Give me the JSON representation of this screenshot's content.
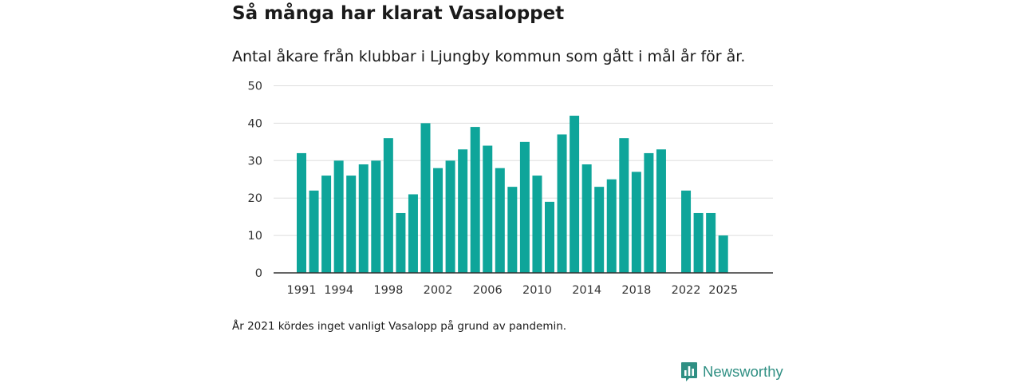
{
  "header": {
    "title": "Så många har klarat Vasaloppet",
    "subtitle": "Antal åkare från klubbar i Ljungby kommun som gått i mål år för år."
  },
  "note": "År 2021 kördes inget vanligt Vasalopp på grund av pandemin.",
  "brand": {
    "name": "Newsworthy",
    "color": "#2f8f83"
  },
  "colors": {
    "bar": "#0ea59a",
    "grid": "#dddddd",
    "axis": "#333333"
  },
  "chart_data": {
    "type": "bar",
    "title": "Så många har klarat Vasaloppet",
    "subtitle": "Antal åkare från klubbar i Ljungby kommun som gått i mål år för år.",
    "xlabel": "",
    "ylabel": "",
    "ylim": [
      0,
      50
    ],
    "yticks": [
      0,
      10,
      20,
      30,
      40,
      50
    ],
    "xticks": [
      1991,
      1994,
      1998,
      2002,
      2006,
      2010,
      2014,
      2018,
      2022,
      2025
    ],
    "grid": true,
    "legend": "none",
    "categories": [
      1991,
      1992,
      1993,
      1994,
      1995,
      1996,
      1997,
      1998,
      1999,
      2000,
      2001,
      2002,
      2003,
      2004,
      2005,
      2006,
      2007,
      2008,
      2009,
      2010,
      2011,
      2012,
      2013,
      2014,
      2015,
      2016,
      2017,
      2018,
      2019,
      2020,
      2021,
      2022,
      2023,
      2024,
      2025
    ],
    "values": [
      32,
      22,
      26,
      30,
      26,
      29,
      30,
      36,
      16,
      21,
      40,
      28,
      30,
      33,
      39,
      34,
      28,
      23,
      35,
      26,
      19,
      37,
      42,
      29,
      23,
      25,
      36,
      27,
      32,
      33,
      null,
      22,
      16,
      16,
      10
    ]
  }
}
